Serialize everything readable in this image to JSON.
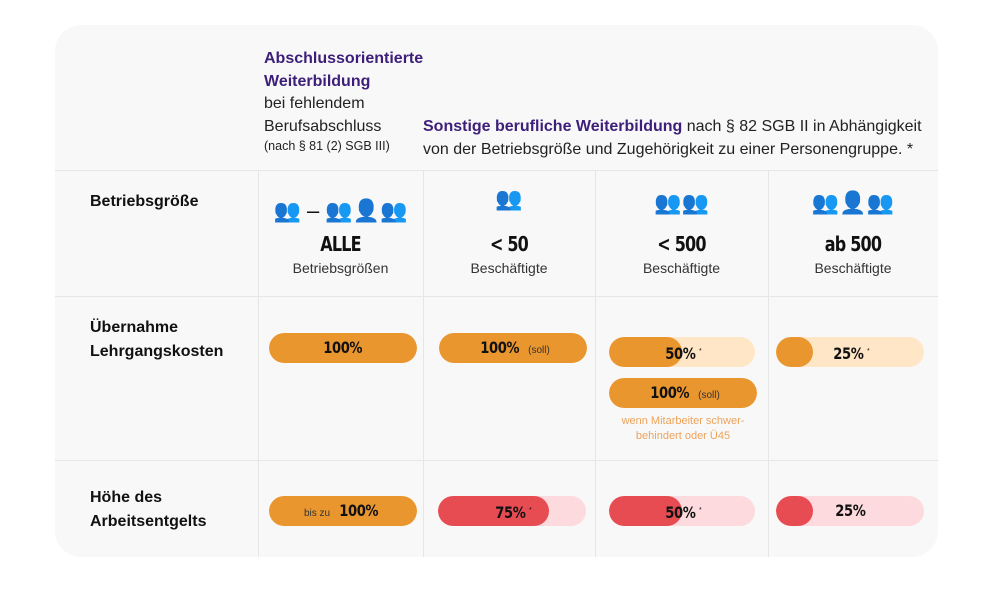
{
  "colors": {
    "orange": "#E9962F",
    "orange_light": "#FFE6C6",
    "red": "#E84C53",
    "red_light": "#FDDADD",
    "purple": "#3D1F7A"
  },
  "header": {
    "col1": {
      "title1": "Abschlussorientierte",
      "title2": "Weiterbildung",
      "line3": "bei fehlendem",
      "line4": "Berufsabschluss",
      "line5": "(nach § 81 (2) SGB III)"
    },
    "col2": {
      "title": "Sonstige berufliche Weiterbildung",
      "rest1": " nach § 82 SGB II in Abhängigkeit",
      "rest2": "von der Betriebsgröße und Zugehörigkeit zu einer Personengruppe. *"
    }
  },
  "rows": {
    "size": "Betriebsgröße",
    "costs1": "Übernahme",
    "costs2": "Lehrgangskosten",
    "wage1": "Höhe des",
    "wage2": "Arbeitsentgelts"
  },
  "columns": [
    {
      "icon": "people-group-range-icon",
      "dash": "–",
      "big": "ALLE",
      "sub": "Betriebsgrößen"
    },
    {
      "icon": "two-people-icon",
      "big": "< 50",
      "sub": "Beschäftigte"
    },
    {
      "icon": "four-people-icon",
      "big": "< 500",
      "sub": "Beschäftigte"
    },
    {
      "icon": "five-people-icon",
      "big": "ab 500",
      "sub": "Beschäftigte"
    }
  ],
  "bars": {
    "c1_cost": {
      "prefix": "",
      "value": "100%",
      "suffix": "",
      "percent": 100
    },
    "c2_cost": {
      "prefix": "",
      "value": "100%",
      "suffix": "(soll)",
      "percent": 100
    },
    "c3_cost": {
      "prefix": "",
      "value": "50%",
      "sup": "*",
      "percent": 50
    },
    "c3_cost2": {
      "prefix": "",
      "value": "100%",
      "suffix": "(soll)",
      "percent": 100
    },
    "c4_cost": {
      "prefix": "",
      "value": "25%",
      "sup": "*",
      "percent": 25
    },
    "c1_wage": {
      "prefix": "bis zu",
      "value": "100%",
      "percent": 100
    },
    "c2_wage": {
      "value": "75%",
      "sup": "*",
      "percent": 75
    },
    "c3_wage": {
      "value": "50%",
      "sup": "*",
      "percent": 50
    },
    "c4_wage": {
      "value": "25%",
      "percent": 25
    }
  },
  "note": {
    "line1": "wenn Mitarbeiter schwer-",
    "line2": "behindert oder Ü45"
  }
}
